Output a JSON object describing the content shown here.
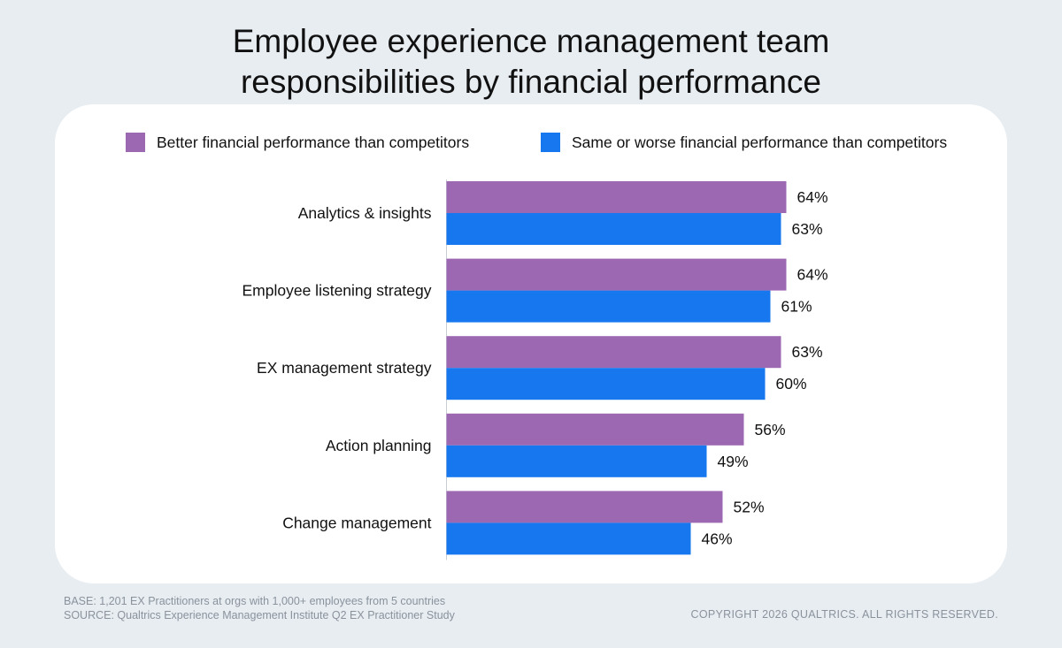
{
  "title_lines": [
    "Employee experience management team",
    "responsibilities by financial performance"
  ],
  "legend": [
    {
      "label": "Better financial performance than competitors",
      "color": "#9d68b2"
    },
    {
      "label": "Same or worse financial performance than competitors",
      "color": "#1677ef"
    }
  ],
  "chart_data": {
    "type": "bar",
    "orientation": "horizontal",
    "title": "Employee experience management team responsibilities by financial performance",
    "categories": [
      "Analytics & insights",
      "Employee listening strategy",
      "EX management strategy",
      "Action planning",
      "Change management"
    ],
    "series": [
      {
        "name": "Better financial performance than competitors",
        "values": [
          64,
          64,
          63,
          56,
          52
        ],
        "color": "#9d68b2"
      },
      {
        "name": "Same or worse financial performance than competitors",
        "values": [
          63,
          61,
          60,
          49,
          46
        ],
        "color": "#1677ef"
      }
    ],
    "value_suffix": "%",
    "xlim": [
      0,
      100
    ],
    "grid": false,
    "legend_position": "top"
  },
  "footer": {
    "base": "BASE: 1,201 EX Practitioners at orgs with 1,000+ employees from 5 countries",
    "source": "SOURCE: Qualtrics Experience Management Institute Q2 EX Practitioner Study",
    "copyright": "COPYRIGHT 2026 QUALTRICS. ALL RIGHTS RESERVED."
  }
}
